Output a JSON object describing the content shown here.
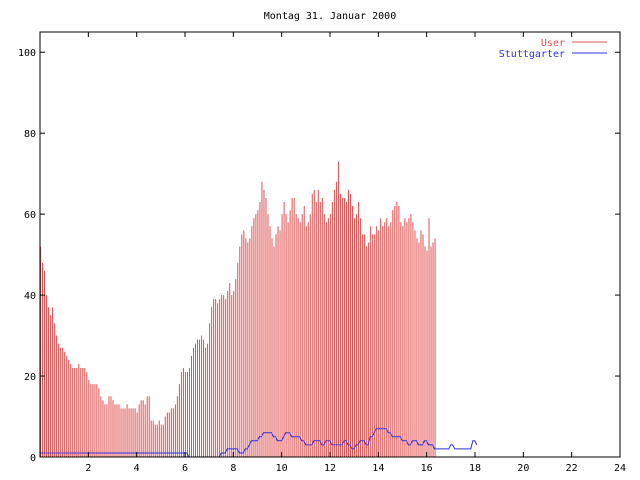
{
  "chart_data": {
    "type": "bar",
    "title": "Montag 31. Januar 2000",
    "xlabel": "",
    "ylabel": "",
    "xlim": [
      0,
      24
    ],
    "ylim": [
      0,
      105
    ],
    "x_ticks": [
      "2",
      "4",
      "6",
      "8",
      "10",
      "12",
      "14",
      "16",
      "18",
      "20",
      "22",
      "24"
    ],
    "x_tick_values": [
      2,
      4,
      6,
      8,
      10,
      12,
      14,
      16,
      18,
      20,
      22,
      24
    ],
    "y_ticks": [
      "0",
      "20",
      "40",
      "60",
      "80",
      "100"
    ],
    "y_tick_values": [
      0,
      20,
      40,
      60,
      80,
      100
    ],
    "grid": false,
    "legend_position": "top-right",
    "series": [
      {
        "name": "User",
        "style": "impulses",
        "color": "#e05050",
        "x_start": 0,
        "x_step": 0.0833,
        "values": [
          52,
          48,
          46,
          40,
          37,
          35,
          37,
          33,
          30,
          28,
          27,
          27,
          26,
          25,
          24,
          23,
          22,
          22,
          22,
          23,
          22,
          22,
          22,
          21,
          19,
          18,
          18,
          18,
          18,
          17,
          15,
          14,
          13,
          13,
          15,
          15,
          14,
          13,
          13,
          13,
          12,
          12,
          12,
          13,
          12,
          12,
          12,
          12,
          11,
          13,
          14,
          14,
          13,
          15,
          15,
          9,
          9,
          8,
          8,
          9,
          8,
          8,
          10,
          11,
          11,
          12,
          12,
          13,
          15,
          18,
          21,
          22,
          21,
          21,
          22,
          25,
          27,
          28,
          29,
          29,
          30,
          29,
          27,
          28,
          33,
          37,
          39,
          39,
          38,
          39,
          40,
          40,
          39,
          41,
          43,
          40,
          41,
          44,
          48,
          52,
          55,
          56,
          54,
          53,
          54,
          57,
          59,
          60,
          61,
          63,
          68,
          66,
          64,
          60,
          57,
          54,
          52,
          55,
          57,
          56,
          60,
          63,
          60,
          58,
          61,
          64,
          64,
          60,
          59,
          58,
          60,
          62,
          57,
          58,
          60,
          65,
          66,
          63,
          66,
          63,
          64,
          60,
          58,
          59,
          60,
          63,
          66,
          68,
          73,
          65,
          64,
          64,
          63,
          66,
          65,
          62,
          59,
          60,
          63,
          59,
          55,
          55,
          52,
          53,
          57,
          55,
          55,
          57,
          56,
          59,
          57,
          58,
          59,
          57,
          58,
          61,
          62,
          63,
          62,
          58,
          57,
          59,
          58,
          59,
          60,
          58,
          56,
          54,
          53,
          56,
          55,
          52,
          51,
          59,
          52,
          53,
          54
        ]
      },
      {
        "name": "Stuttgarter",
        "style": "line",
        "color": "#3030e0",
        "x_start": 0,
        "x_step": 0.0833,
        "values": [
          1,
          1,
          1,
          1,
          1,
          1,
          1,
          1,
          1,
          1,
          1,
          1,
          1,
          1,
          1,
          1,
          1,
          1,
          1,
          1,
          1,
          1,
          1,
          1,
          1,
          1,
          1,
          1,
          1,
          1,
          1,
          1,
          1,
          1,
          1,
          1,
          1,
          1,
          1,
          1,
          1,
          1,
          1,
          1,
          1,
          1,
          1,
          1,
          1,
          1,
          1,
          1,
          1,
          1,
          1,
          1,
          1,
          1,
          1,
          1,
          1,
          1,
          1,
          1,
          1,
          1,
          1,
          1,
          1,
          1,
          1,
          1,
          1,
          1,
          0,
          0,
          0,
          0,
          0,
          0,
          0,
          0,
          0,
          0,
          0,
          0,
          0,
          0,
          0,
          0,
          1,
          1,
          1,
          2,
          2,
          2,
          2,
          2,
          2,
          1,
          1,
          1,
          2,
          2,
          3,
          4,
          4,
          4,
          4,
          5,
          5,
          6,
          6,
          6,
          6,
          6,
          5,
          5,
          4,
          4,
          4,
          5,
          6,
          6,
          6,
          5,
          5,
          5,
          5,
          5,
          4,
          4,
          3,
          3,
          3,
          3,
          4,
          4,
          4,
          4,
          3,
          3,
          4,
          4,
          4,
          3,
          3,
          3,
          3,
          3,
          3,
          4,
          4,
          3,
          3,
          2,
          2,
          3,
          3,
          4,
          4,
          4,
          3,
          3,
          5,
          5,
          6,
          7,
          7,
          7,
          7,
          7,
          7,
          6,
          6,
          5,
          5,
          5,
          5,
          5,
          4,
          4,
          4,
          3,
          3,
          4,
          4,
          4,
          3,
          3,
          3,
          4,
          4,
          3,
          3,
          3,
          2,
          2,
          2,
          2,
          2,
          2,
          2,
          2,
          3,
          3,
          2,
          2,
          2,
          2,
          2,
          2,
          2,
          2,
          2,
          4,
          4,
          3
        ]
      }
    ]
  }
}
